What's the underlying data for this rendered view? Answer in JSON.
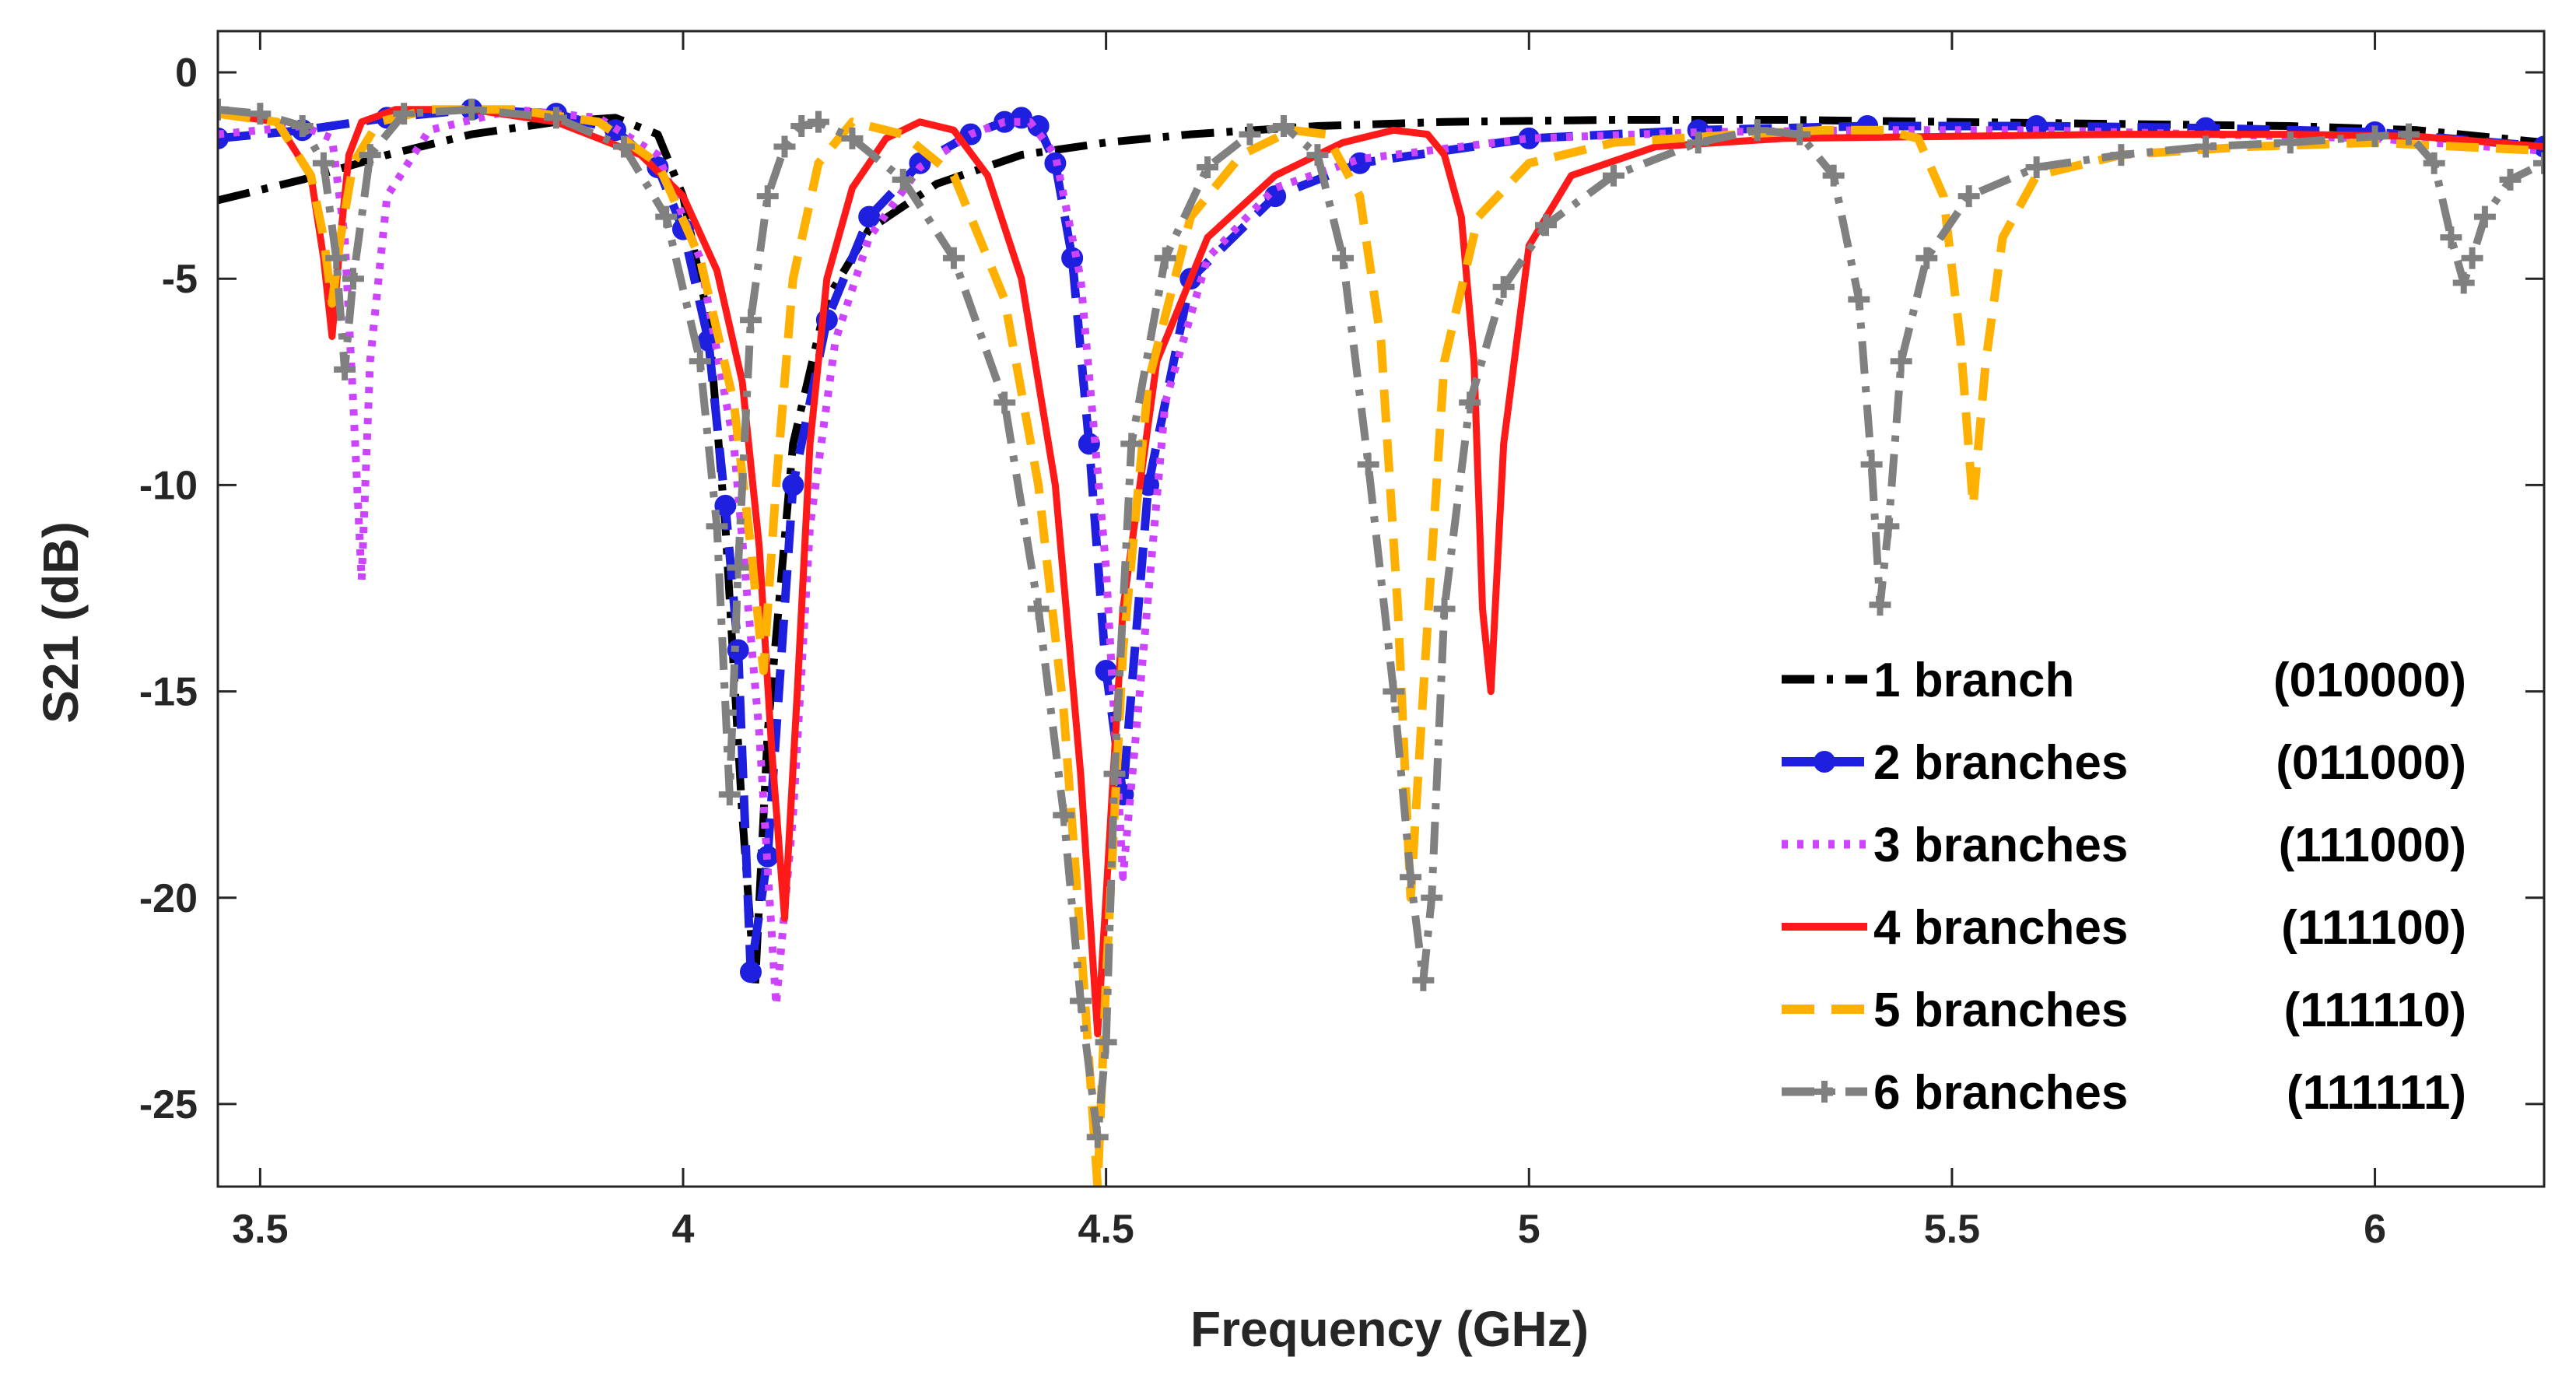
{
  "chart_data": {
    "type": "line",
    "title": "",
    "xlabel": "Frequency (GHz)",
    "ylabel": "S21 (dB)",
    "xlim": [
      3.45,
      6.2
    ],
    "ylim": [
      -27,
      1
    ],
    "xticks": [
      3.5,
      4,
      4.5,
      5,
      5.5,
      6
    ],
    "xtick_labels": [
      "3.5",
      "4",
      "4.5",
      "5",
      "5.5",
      "6"
    ],
    "yticks": [
      0,
      -5,
      -10,
      -15,
      -20,
      -25
    ],
    "ytick_labels": [
      "0",
      "-5",
      "-10",
      "-15",
      "-20",
      "-25"
    ],
    "grid": false,
    "legend_position": "bottom-right",
    "series": [
      {
        "name": "1 branch (010000)",
        "legend_left": "1 branch",
        "legend_right": "(010000)",
        "color": "#000000",
        "style": "dashdot",
        "marker": "none",
        "x": [
          3.45,
          3.55,
          3.65,
          3.75,
          3.85,
          3.92,
          3.97,
          4.0,
          4.03,
          4.05,
          4.07,
          4.085,
          4.1,
          4.13,
          4.17,
          4.22,
          4.3,
          4.4,
          4.5,
          4.6,
          4.75,
          4.9,
          5.1,
          5.3,
          5.5,
          5.7,
          5.9,
          6.05,
          6.2
        ],
        "y": [
          -3.1,
          -2.6,
          -2.0,
          -1.5,
          -1.2,
          -1.1,
          -1.5,
          -3.0,
          -6.0,
          -11.0,
          -18.0,
          -22.2,
          -16.0,
          -9.0,
          -5.5,
          -3.8,
          -2.7,
          -2.0,
          -1.7,
          -1.5,
          -1.3,
          -1.2,
          -1.15,
          -1.15,
          -1.2,
          -1.25,
          -1.3,
          -1.4,
          -1.7
        ]
      },
      {
        "name": "2 branches (011000)",
        "legend_left": "2 branches",
        "legend_right": "(011000)",
        "color": "#1f1fe0",
        "style": "dashed",
        "marker": "circle",
        "x": [
          3.45,
          3.55,
          3.65,
          3.75,
          3.85,
          3.92,
          3.97,
          4.0,
          4.03,
          4.05,
          4.065,
          4.08,
          4.1,
          4.13,
          4.17,
          4.22,
          4.28,
          4.34,
          4.38,
          4.4,
          4.42,
          4.44,
          4.46,
          4.48,
          4.5,
          4.52,
          4.55,
          4.6,
          4.7,
          4.8,
          5.0,
          5.2,
          5.4,
          5.6,
          5.8,
          6.0,
          6.2
        ],
        "y": [
          -1.6,
          -1.4,
          -1.1,
          -0.9,
          -1.0,
          -1.4,
          -2.3,
          -3.8,
          -6.5,
          -10.5,
          -14.0,
          -21.8,
          -19.0,
          -10.0,
          -6.0,
          -3.5,
          -2.2,
          -1.5,
          -1.2,
          -1.1,
          -1.3,
          -2.2,
          -4.5,
          -9.0,
          -14.5,
          -17.5,
          -10.0,
          -5.0,
          -3.0,
          -2.2,
          -1.6,
          -1.4,
          -1.3,
          -1.3,
          -1.35,
          -1.45,
          -1.8
        ]
      },
      {
        "name": "3 branches (111000)",
        "legend_left": "3 branches",
        "legend_right": "(111000)",
        "color": "#cc44ff",
        "style": "dotted",
        "marker": "none",
        "x": [
          3.45,
          3.55,
          3.585,
          3.6,
          3.61,
          3.62,
          3.63,
          3.65,
          3.7,
          3.8,
          3.9,
          3.97,
          4.02,
          4.06,
          4.09,
          4.11,
          4.13,
          4.15,
          4.18,
          4.22,
          4.28,
          4.34,
          4.38,
          4.41,
          4.44,
          4.47,
          4.5,
          4.52,
          4.54,
          4.57,
          4.62,
          4.7,
          4.8,
          5.0,
          5.2,
          5.4,
          5.6,
          5.8,
          6.0,
          6.2
        ],
        "y": [
          -1.5,
          -1.3,
          -1.6,
          -4.0,
          -8.0,
          -12.3,
          -7.0,
          -3.0,
          -1.4,
          -0.9,
          -1.1,
          -2.0,
          -4.5,
          -9.0,
          -16.0,
          -22.6,
          -18.0,
          -11.0,
          -6.5,
          -4.0,
          -2.3,
          -1.5,
          -1.2,
          -1.2,
          -2.0,
          -5.0,
          -12.0,
          -19.5,
          -15.0,
          -8.0,
          -4.5,
          -2.8,
          -2.1,
          -1.6,
          -1.45,
          -1.4,
          -1.4,
          -1.5,
          -1.6,
          -1.9
        ]
      },
      {
        "name": "4 branches (111100)",
        "legend_left": "4 branches",
        "legend_right": "(111100)",
        "color": "#ff1a1a",
        "style": "solid",
        "marker": "none",
        "x": [
          3.45,
          3.52,
          3.56,
          3.575,
          3.585,
          3.595,
          3.605,
          3.62,
          3.66,
          3.75,
          3.85,
          3.95,
          4.0,
          4.04,
          4.07,
          4.09,
          4.105,
          4.12,
          4.135,
          4.15,
          4.17,
          4.2,
          4.24,
          4.28,
          4.32,
          4.36,
          4.4,
          4.44,
          4.47,
          4.49,
          4.5,
          4.52,
          4.56,
          4.62,
          4.7,
          4.78,
          4.84,
          4.88,
          4.9,
          4.92,
          4.935,
          4.945,
          4.955,
          4.97,
          5.0,
          5.05,
          5.15,
          5.3,
          5.5,
          5.7,
          5.9,
          6.05,
          6.2
        ],
        "y": [
          -1.0,
          -1.2,
          -2.5,
          -4.5,
          -6.4,
          -4.0,
          -2.0,
          -1.2,
          -0.9,
          -0.9,
          -1.2,
          -2.0,
          -3.0,
          -4.8,
          -7.5,
          -11.5,
          -16.5,
          -20.5,
          -15.0,
          -9.0,
          -5.0,
          -2.8,
          -1.6,
          -1.2,
          -1.4,
          -2.5,
          -5.0,
          -10.0,
          -17.0,
          -23.3,
          -20.0,
          -13.0,
          -7.0,
          -4.0,
          -2.5,
          -1.7,
          -1.4,
          -1.5,
          -2.0,
          -3.5,
          -7.0,
          -13.0,
          -15.0,
          -9.0,
          -4.2,
          -2.5,
          -1.8,
          -1.6,
          -1.55,
          -1.5,
          -1.5,
          -1.55,
          -1.8
        ]
      },
      {
        "name": "5 branches (111110)",
        "legend_left": "5 branches",
        "legend_right": "(111110)",
        "color": "#ffb000",
        "style": "dashed",
        "marker": "none",
        "x": [
          3.45,
          3.52,
          3.56,
          3.575,
          3.585,
          3.595,
          3.61,
          3.64,
          3.7,
          3.8,
          3.9,
          3.97,
          4.02,
          4.06,
          4.08,
          4.095,
          4.11,
          4.13,
          4.16,
          4.2,
          4.26,
          4.32,
          4.38,
          4.42,
          4.45,
          4.47,
          4.48,
          4.49,
          4.5,
          4.52,
          4.55,
          4.6,
          4.66,
          4.72,
          4.76,
          4.8,
          4.825,
          4.845,
          4.86,
          4.875,
          4.9,
          4.94,
          5.0,
          5.1,
          5.25,
          5.35,
          5.42,
          5.46,
          5.49,
          5.51,
          5.525,
          5.54,
          5.56,
          5.6,
          5.7,
          5.85,
          6.0,
          6.2
        ],
        "y": [
          -1.0,
          -1.2,
          -2.5,
          -4.0,
          -5.6,
          -4.0,
          -2.2,
          -1.2,
          -0.9,
          -0.9,
          -1.2,
          -2.2,
          -4.5,
          -8.0,
          -11.5,
          -14.5,
          -10.0,
          -5.0,
          -2.2,
          -1.2,
          -1.5,
          -2.5,
          -5.5,
          -10.0,
          -15.5,
          -21.0,
          -24.0,
          -27.0,
          -22.0,
          -14.0,
          -7.5,
          -3.5,
          -2.0,
          -1.4,
          -1.5,
          -3.0,
          -6.5,
          -13.0,
          -20.0,
          -15.0,
          -7.0,
          -3.5,
          -2.2,
          -1.7,
          -1.5,
          -1.4,
          -1.4,
          -1.6,
          -3.0,
          -6.5,
          -10.5,
          -7.0,
          -4.0,
          -2.5,
          -2.0,
          -1.8,
          -1.7,
          -1.9
        ]
      },
      {
        "name": "6 branches (111111)",
        "legend_left": "6 branches",
        "legend_right": "(111111)",
        "color": "#808080",
        "style": "dashdot",
        "marker": "plus",
        "x": [
          3.45,
          3.5,
          3.55,
          3.575,
          3.59,
          3.6,
          3.61,
          3.63,
          3.67,
          3.75,
          3.85,
          3.93,
          3.98,
          4.02,
          4.04,
          4.055,
          4.065,
          4.08,
          4.1,
          4.12,
          4.14,
          4.16,
          4.2,
          4.26,
          4.32,
          4.38,
          4.42,
          4.45,
          4.47,
          4.49,
          4.5,
          4.51,
          4.53,
          4.57,
          4.62,
          4.67,
          4.71,
          4.75,
          4.78,
          4.81,
          4.84,
          4.86,
          4.875,
          4.885,
          4.9,
          4.93,
          4.97,
          5.02,
          5.1,
          5.2,
          5.27,
          5.32,
          5.36,
          5.39,
          5.405,
          5.415,
          5.425,
          5.44,
          5.47,
          5.52,
          5.6,
          5.7,
          5.8,
          5.9,
          6.0,
          6.04,
          6.07,
          6.09,
          6.105,
          6.115,
          6.13,
          6.16,
          6.2
        ],
        "y": [
          -0.9,
          -1.0,
          -1.3,
          -2.2,
          -4.5,
          -7.2,
          -5.0,
          -2.0,
          -1.0,
          -0.9,
          -1.1,
          -1.8,
          -3.5,
          -7.0,
          -11.0,
          -17.5,
          -12.0,
          -6.0,
          -3.0,
          -1.8,
          -1.3,
          -1.2,
          -1.6,
          -2.6,
          -4.5,
          -8.0,
          -13.0,
          -18.0,
          -22.5,
          -25.8,
          -23.5,
          -17.0,
          -9.0,
          -4.5,
          -2.3,
          -1.5,
          -1.3,
          -2.0,
          -4.5,
          -9.5,
          -15.0,
          -19.5,
          -22.0,
          -20.0,
          -13.0,
          -8.0,
          -5.2,
          -3.7,
          -2.5,
          -1.7,
          -1.4,
          -1.5,
          -2.5,
          -5.5,
          -9.5,
          -12.9,
          -11.0,
          -7.0,
          -4.5,
          -3.0,
          -2.3,
          -2.0,
          -1.8,
          -1.7,
          -1.55,
          -1.5,
          -2.2,
          -4.0,
          -5.1,
          -4.5,
          -3.5,
          -2.6,
          -2.2
        ]
      }
    ]
  }
}
